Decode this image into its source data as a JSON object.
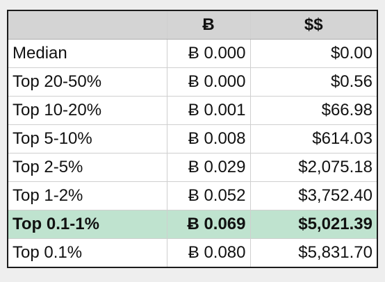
{
  "table": {
    "headers": [
      "",
      "Ƀ",
      "$$"
    ],
    "rows": [
      {
        "label": "Median",
        "btc": "Ƀ 0.000",
        "usd": "$0.00",
        "highlight": false
      },
      {
        "label": "Top 20-50%",
        "btc": "Ƀ 0.000",
        "usd": "$0.56",
        "highlight": false
      },
      {
        "label": "Top 10-20%",
        "btc": "Ƀ 0.001",
        "usd": "$66.98",
        "highlight": false
      },
      {
        "label": "Top 5-10%",
        "btc": "Ƀ 0.008",
        "usd": "$614.03",
        "highlight": false
      },
      {
        "label": "Top 2-5%",
        "btc": "Ƀ 0.029",
        "usd": "$2,075.18",
        "highlight": false
      },
      {
        "label": "Top 1-2%",
        "btc": "Ƀ 0.052",
        "usd": "$3,752.40",
        "highlight": false
      },
      {
        "label": "Top 0.1-1%",
        "btc": "Ƀ 0.069",
        "usd": "$5,021.39",
        "highlight": true
      },
      {
        "label": "Top 0.1%",
        "btc": "Ƀ 0.080",
        "usd": "$5,831.70",
        "highlight": false
      }
    ]
  },
  "colors": {
    "header_bg": "#d4d4d4",
    "highlight_bg": "#bfe3cf",
    "page_bg": "#eeeeee"
  }
}
